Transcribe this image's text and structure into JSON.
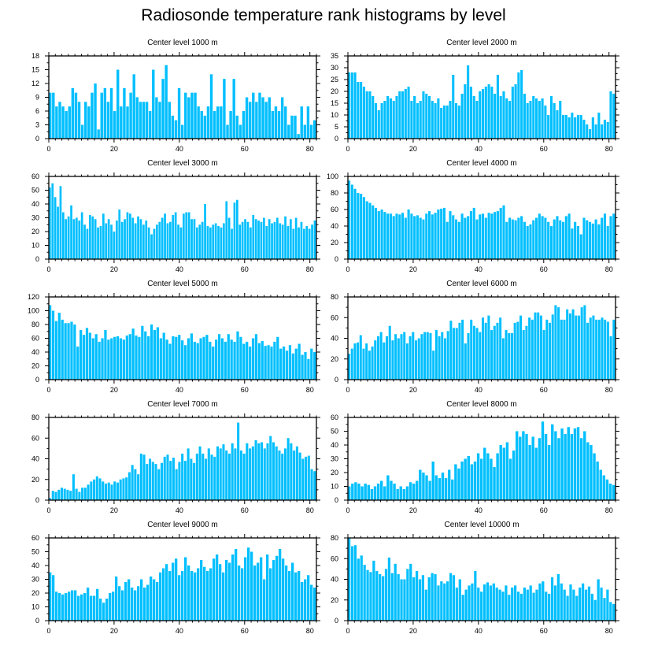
{
  "title": "Radiosonde temperature rank histograms by level",
  "chart_data": [
    {
      "type": "bar",
      "title": "Center level 1000 m",
      "xlim": [
        0,
        82
      ],
      "xticks": [
        0,
        20,
        40,
        60,
        80
      ],
      "ylim": [
        0,
        18
      ],
      "yticks": [
        0,
        3,
        6,
        9,
        12,
        15,
        18
      ],
      "values": [
        10,
        10,
        7,
        8,
        7,
        6,
        7,
        11,
        10,
        8,
        3,
        8,
        7,
        10,
        12,
        2,
        10,
        11,
        8,
        11,
        6,
        15,
        7,
        11,
        7,
        10,
        14,
        9,
        8,
        8,
        8,
        6,
        15,
        9,
        8,
        13,
        16,
        8,
        5,
        4,
        11,
        3,
        10,
        9,
        10,
        10,
        7,
        6,
        5,
        7,
        14,
        6,
        7,
        7,
        13,
        3,
        6,
        13,
        5,
        3,
        6,
        9,
        8,
        10,
        8,
        10,
        9,
        8,
        9,
        6,
        7,
        6,
        9,
        7,
        3,
        5,
        5,
        1,
        7,
        3,
        7,
        3,
        4
      ],
      "color": "#00bfff"
    },
    {
      "type": "bar",
      "title": "Center level 2000 m",
      "xlim": [
        0,
        82
      ],
      "xticks": [
        0,
        20,
        40,
        60,
        80
      ],
      "ylim": [
        0,
        35
      ],
      "yticks": [
        0,
        5,
        10,
        15,
        20,
        25,
        30,
        35
      ],
      "values": [
        28,
        28,
        28,
        24,
        24,
        22,
        20,
        20,
        18,
        15,
        12,
        15,
        16,
        18,
        17,
        16,
        18,
        20,
        20,
        21,
        22,
        16,
        18,
        15,
        16,
        20,
        19,
        18,
        16,
        15,
        17,
        13,
        14,
        14,
        16,
        27,
        15,
        14,
        19,
        23,
        31,
        22,
        18,
        16,
        20,
        21,
        22,
        23,
        22,
        19,
        27,
        18,
        20,
        17,
        16,
        22,
        23,
        28,
        29,
        19,
        15,
        16,
        18,
        17,
        16,
        17,
        14,
        10,
        18,
        15,
        12,
        16,
        10,
        10,
        9,
        11,
        9,
        10,
        10,
        8,
        6,
        4,
        9,
        6,
        11,
        6,
        8,
        7,
        20,
        19
      ],
      "color": "#00bfff"
    },
    {
      "type": "bar",
      "title": "Center level 3000 m",
      "xlim": [
        0,
        82
      ],
      "xticks": [
        0,
        20,
        40,
        60,
        80
      ],
      "ylim": [
        0,
        60
      ],
      "yticks": [
        0,
        10,
        20,
        30,
        40,
        50,
        60
      ],
      "values": [
        52,
        55,
        45,
        38,
        53,
        34,
        29,
        31,
        39,
        29,
        30,
        28,
        34,
        25,
        22,
        32,
        31,
        29,
        23,
        24,
        33,
        26,
        29,
        25,
        20,
        28,
        36,
        27,
        29,
        34,
        33,
        30,
        26,
        31,
        29,
        25,
        28,
        23,
        18,
        22,
        25,
        27,
        30,
        33,
        26,
        27,
        32,
        34,
        25,
        23,
        33,
        34,
        34,
        29,
        29,
        23,
        25,
        27,
        40,
        24,
        23,
        25,
        26,
        24,
        23,
        26,
        42,
        30,
        22,
        41,
        43,
        25,
        27,
        29,
        27,
        23,
        32,
        29,
        28,
        27,
        30,
        24,
        29,
        26,
        27,
        30,
        26,
        25,
        31,
        24,
        29,
        22,
        30,
        23,
        27,
        22,
        24,
        22,
        25,
        28
      ],
      "color": "#00bfff"
    },
    {
      "type": "bar",
      "title": "Center level 4000 m",
      "xlim": [
        0,
        82
      ],
      "xticks": [
        0,
        20,
        40,
        60,
        80
      ],
      "ylim": [
        0,
        100
      ],
      "yticks": [
        0,
        20,
        40,
        60,
        80,
        100
      ],
      "values": [
        95,
        90,
        85,
        80,
        79,
        75,
        70,
        68,
        65,
        62,
        58,
        60,
        57,
        55,
        55,
        52,
        55,
        54,
        56,
        50,
        60,
        55,
        52,
        53,
        50,
        48,
        55,
        58,
        54,
        56,
        60,
        61,
        62,
        45,
        58,
        53,
        48,
        45,
        55,
        50,
        52,
        58,
        62,
        48,
        54,
        55,
        50,
        56,
        55,
        57,
        58,
        62,
        65,
        45,
        50,
        48,
        47,
        50,
        52,
        45,
        40,
        42,
        47,
        50,
        55,
        52,
        50,
        45,
        40,
        48,
        52,
        47,
        45,
        52,
        55,
        37,
        45,
        40,
        30,
        50,
        47,
        45,
        43,
        48,
        42,
        50,
        55,
        40,
        52,
        55
      ],
      "color": "#00bfff"
    },
    {
      "type": "bar",
      "title": "Center level 5000 m",
      "xlim": [
        0,
        82
      ],
      "xticks": [
        0,
        20,
        40,
        60,
        80
      ],
      "ylim": [
        0,
        120
      ],
      "yticks": [
        0,
        20,
        40,
        60,
        80,
        100,
        120
      ],
      "values": [
        108,
        100,
        85,
        97,
        87,
        82,
        82,
        84,
        80,
        48,
        72,
        65,
        75,
        68,
        60,
        66,
        55,
        60,
        72,
        58,
        60,
        62,
        63,
        60,
        58,
        64,
        66,
        74,
        64,
        62,
        78,
        70,
        63,
        80,
        72,
        76,
        60,
        68,
        58,
        52,
        63,
        62,
        65,
        57,
        50,
        60,
        67,
        55,
        53,
        60,
        62,
        65,
        55,
        48,
        58,
        66,
        60,
        55,
        66,
        58,
        55,
        70,
        62,
        52,
        55,
        48,
        60,
        66,
        53,
        56,
        49,
        50,
        48,
        55,
        62,
        45,
        48,
        42,
        50,
        38,
        45,
        52,
        36,
        40,
        30,
        45,
        40
      ],
      "color": "#00bfff"
    },
    {
      "type": "bar",
      "title": "Center level 6000 m",
      "xlim": [
        0,
        82
      ],
      "xticks": [
        0,
        20,
        40,
        60,
        80
      ],
      "ylim": [
        0,
        80
      ],
      "yticks": [
        0,
        20,
        40,
        60,
        80
      ],
      "values": [
        25,
        30,
        35,
        36,
        43,
        30,
        35,
        28,
        32,
        38,
        42,
        46,
        36,
        42,
        52,
        38,
        44,
        40,
        44,
        46,
        35,
        42,
        46,
        38,
        40,
        44,
        46,
        46,
        45,
        28,
        48,
        42,
        46,
        40,
        47,
        57,
        50,
        50,
        55,
        58,
        35,
        45,
        58,
        52,
        50,
        46,
        60,
        55,
        62,
        48,
        52,
        55,
        60,
        40,
        48,
        45,
        45,
        55,
        56,
        62,
        48,
        52,
        60,
        58,
        65,
        65,
        62,
        48,
        58,
        55,
        63,
        72,
        70,
        58,
        58,
        68,
        64,
        68,
        62,
        62,
        70,
        72,
        55,
        60,
        62,
        58,
        58,
        60,
        58,
        56,
        42,
        58
      ],
      "color": "#00bfff"
    },
    {
      "type": "bar",
      "title": "Center level 7000 m",
      "xlim": [
        0,
        82
      ],
      "xticks": [
        0,
        20,
        40,
        60,
        80
      ],
      "ylim": [
        0,
        80
      ],
      "yticks": [
        0,
        20,
        40,
        60,
        80
      ],
      "values": [
        2,
        9,
        8,
        10,
        12,
        11,
        10,
        9,
        25,
        11,
        8,
        12,
        12,
        15,
        18,
        20,
        23,
        21,
        18,
        16,
        17,
        15,
        18,
        17,
        20,
        21,
        22,
        27,
        34,
        30,
        25,
        45,
        44,
        35,
        40,
        37,
        35,
        30,
        36,
        42,
        44,
        38,
        41,
        30,
        37,
        45,
        38,
        50,
        40,
        36,
        45,
        52,
        45,
        40,
        50,
        44,
        42,
        52,
        50,
        54,
        48,
        45,
        55,
        50,
        75,
        48,
        45,
        55,
        50,
        52,
        58,
        55,
        56,
        50,
        55,
        62,
        56,
        52,
        48,
        45,
        50,
        60,
        55,
        48,
        52,
        46,
        40,
        42,
        43,
        30,
        28
      ],
      "color": "#00bfff"
    },
    {
      "type": "bar",
      "title": "Center level 8000 m",
      "xlim": [
        0,
        82
      ],
      "xticks": [
        0,
        20,
        40,
        60,
        80
      ],
      "ylim": [
        0,
        60
      ],
      "yticks": [
        0,
        10,
        20,
        30,
        40,
        50,
        60
      ],
      "values": [
        10,
        12,
        13,
        12,
        10,
        12,
        11,
        8,
        10,
        12,
        14,
        10,
        18,
        14,
        12,
        8,
        10,
        8,
        10,
        13,
        12,
        14,
        22,
        20,
        18,
        14,
        28,
        18,
        16,
        20,
        16,
        22,
        15,
        26,
        23,
        28,
        30,
        32,
        26,
        28,
        34,
        30,
        38,
        34,
        30,
        24,
        34,
        40,
        38,
        42,
        30,
        36,
        50,
        46,
        50,
        48,
        40,
        46,
        38,
        45,
        57,
        48,
        40,
        55,
        50,
        45,
        52,
        48,
        53,
        48,
        52,
        53,
        45,
        50,
        42,
        40,
        34,
        28,
        22,
        18,
        15,
        12,
        11
      ],
      "color": "#00bfff"
    },
    {
      "type": "bar",
      "title": "Center level 9000 m",
      "xlim": [
        0,
        82
      ],
      "xticks": [
        0,
        20,
        40,
        60,
        80
      ],
      "ylim": [
        0,
        60
      ],
      "yticks": [
        0,
        10,
        20,
        30,
        40,
        50,
        60
      ],
      "values": [
        35,
        33,
        21,
        20,
        19,
        20,
        21,
        22,
        22,
        18,
        19,
        20,
        24,
        18,
        18,
        23,
        16,
        13,
        16,
        20,
        21,
        32,
        25,
        22,
        28,
        30,
        24,
        22,
        25,
        30,
        24,
        26,
        32,
        30,
        28,
        35,
        38,
        41,
        36,
        42,
        45,
        33,
        36,
        46,
        40,
        36,
        35,
        38,
        44,
        39,
        36,
        38,
        45,
        48,
        41,
        35,
        44,
        42,
        48,
        52,
        40,
        38,
        46,
        53,
        50,
        40,
        42,
        46,
        30,
        48,
        38,
        44,
        47,
        52,
        45,
        40,
        36,
        42,
        35,
        36,
        28,
        30,
        33,
        26,
        24
      ],
      "color": "#00bfff"
    },
    {
      "type": "bar",
      "title": "Center level 10000 m",
      "xlim": [
        0,
        82
      ],
      "xticks": [
        0,
        20,
        40,
        60,
        80
      ],
      "ylim": [
        0,
        80
      ],
      "yticks": [
        0,
        20,
        40,
        60,
        80
      ],
      "values": [
        80,
        72,
        73,
        60,
        63,
        54,
        49,
        47,
        58,
        48,
        45,
        43,
        50,
        61,
        46,
        55,
        45,
        40,
        40,
        50,
        55,
        42,
        48,
        40,
        44,
        30,
        42,
        46,
        45,
        34,
        38,
        36,
        38,
        46,
        44,
        32,
        40,
        25,
        30,
        34,
        36,
        48,
        32,
        28,
        35,
        37,
        34,
        36,
        32,
        30,
        28,
        34,
        25,
        32,
        34,
        28,
        26,
        32,
        30,
        34,
        27,
        30,
        36,
        38,
        28,
        26,
        42,
        34,
        45,
        36,
        30,
        24,
        35,
        30,
        24,
        32,
        36,
        30,
        33,
        26,
        20,
        40,
        32,
        22,
        30,
        18,
        16
      ],
      "color": "#00bfff"
    }
  ]
}
